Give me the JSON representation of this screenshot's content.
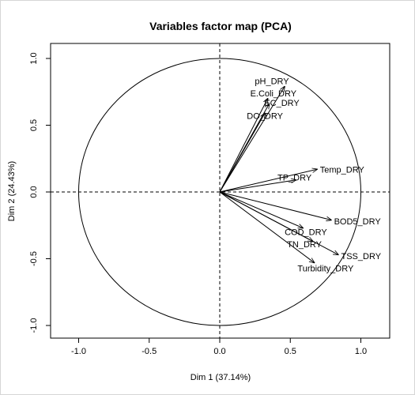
{
  "chart_data": {
    "type": "scatter",
    "subtype": "pca-correlation-circle",
    "title": "Variables factor map (PCA)",
    "xlabel": "Dim 1 (37.14%)",
    "ylabel": "Dim 2 (24.43%)",
    "xlim": [
      -1.0,
      1.0
    ],
    "ylim": [
      -1.0,
      1.0
    ],
    "x_ticks": [
      "-1.0",
      "-0.5",
      "0.0",
      "0.5",
      "1.0"
    ],
    "y_ticks": [
      "-1.0",
      "-0.5",
      "0.0",
      "0.5",
      "1.0"
    ],
    "unit_circle": true,
    "reference_lines": "dashed at x=0 and y=0",
    "grid": false,
    "variables": [
      {
        "name": "pH_DRY",
        "x": 0.46,
        "y": 0.79
      },
      {
        "name": "E.Coli_DRY",
        "x": 0.34,
        "y": 0.7
      },
      {
        "name": "EC_DRY",
        "x": 0.35,
        "y": 0.66
      },
      {
        "name": "DO_DRY",
        "x": 0.32,
        "y": 0.59
      },
      {
        "name": "Temp_DRY",
        "x": 0.69,
        "y": 0.17
      },
      {
        "name": "TP_DRY",
        "x": 0.54,
        "y": 0.09
      },
      {
        "name": "BOD5_DRY",
        "x": 0.79,
        "y": -0.21
      },
      {
        "name": "COD_DRY",
        "x": 0.59,
        "y": -0.27
      },
      {
        "name": "TN_DRY",
        "x": 0.66,
        "y": -0.37
      },
      {
        "name": "TSS_DRY",
        "x": 0.84,
        "y": -0.47
      },
      {
        "name": "Turbidity_DRY",
        "x": 0.67,
        "y": -0.53
      }
    ]
  }
}
